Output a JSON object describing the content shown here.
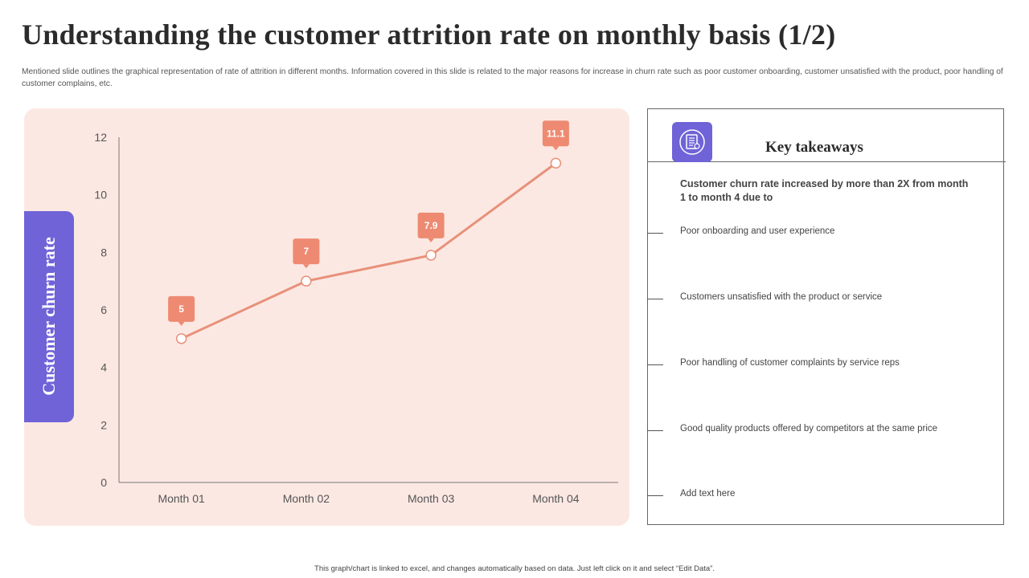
{
  "slide": {
    "title": "Understanding the customer attrition rate on monthly basis (1/2)",
    "subtitle": "Mentioned slide outlines the graphical representation of rate of attrition in different months. Information covered in this slide is related to the major reasons for increase in churn rate such as poor customer onboarding, customer unsatisfied with the product, poor handling of customer complains, etc.",
    "footer": "This graph/chart is linked to excel, and changes automatically based on data. Just left click on it and select “Edit Data”."
  },
  "chart_data": {
    "type": "line",
    "title": "",
    "xlabel": "",
    "ylabel": "Customer churn rate",
    "categories": [
      "Month 01",
      "Month 02",
      "Month 03",
      "Month 04"
    ],
    "series": [
      {
        "name": "Customer churn rate",
        "values": [
          5,
          7,
          7.9,
          11.1
        ]
      }
    ],
    "data_labels": [
      "5",
      "7",
      "7.9",
      "11.1"
    ],
    "ylim": [
      0,
      12
    ],
    "yticks": [
      0,
      2,
      4,
      6,
      8,
      10,
      12
    ],
    "grid": false,
    "line_color": "#e8917a",
    "label_color": "#ee8a72",
    "panel_color": "#fce8e3"
  },
  "takeaways": {
    "title": "Key takeaways",
    "icon": "document-checklist-icon",
    "intro": "Customer churn rate increased by more than 2X from month 1 to month 4 due to",
    "items": [
      "Poor onboarding and user experience",
      "Customers unsatisfied with the product or service",
      "Poor handling of customer complaints by service reps",
      "Good quality products offered by competitors at the same price",
      "Add text here"
    ]
  },
  "colors": {
    "accent": "#6f63d7",
    "line": "#e8917a",
    "panel": "#fce8e3"
  }
}
